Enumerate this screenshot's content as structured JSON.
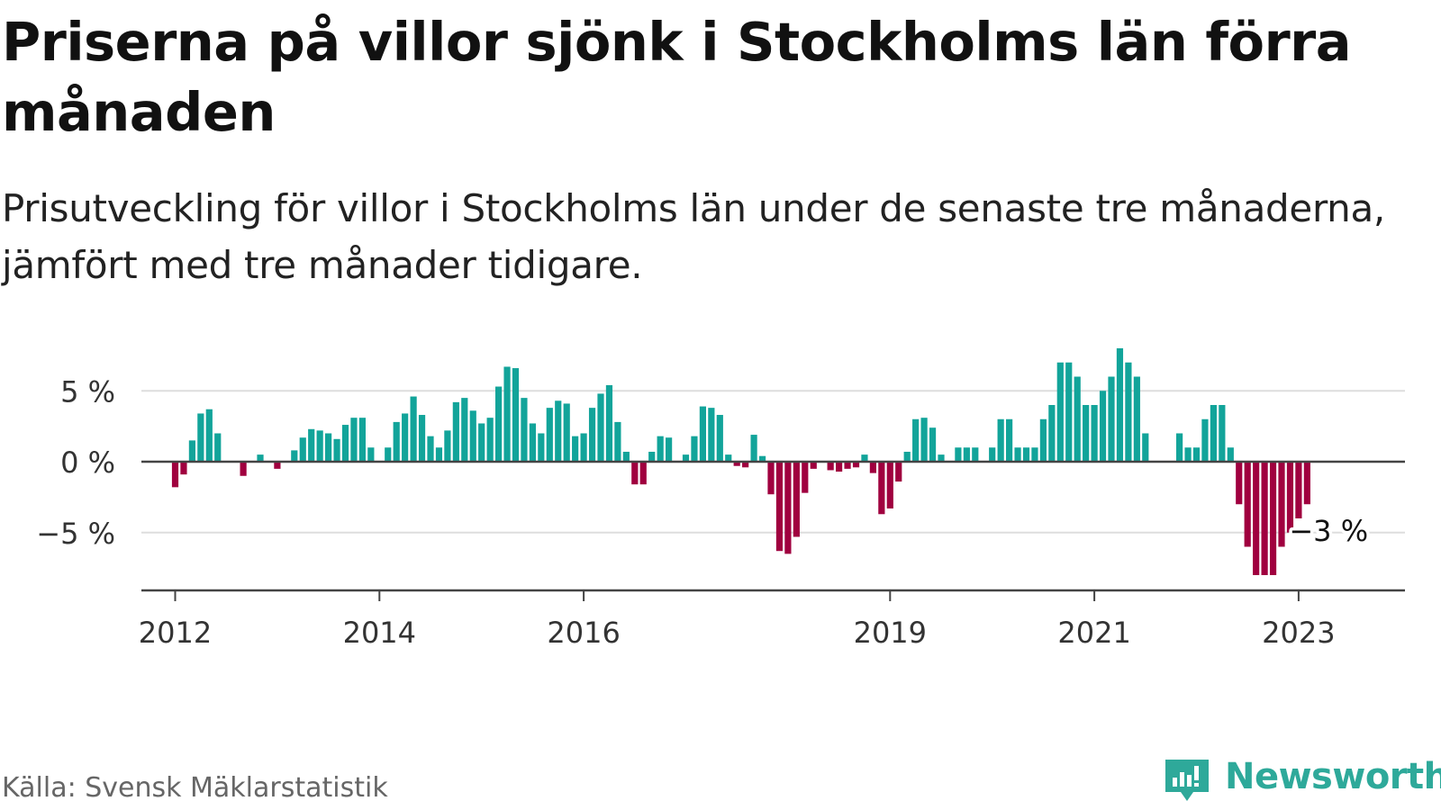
{
  "header": {
    "title": "Priserna på villor sjönk i Stockholms län förra månaden",
    "subtitle": "Prisutveckling för villor i Stockholms län under de senaste tre månaderna, jämfört med tre månader tidigare."
  },
  "footer": {
    "source": "Källa: Svensk Mäklarstatistik",
    "brand": "Newsworthy"
  },
  "colors": {
    "positive": "#12a49a",
    "negative": "#a0003f",
    "brand": "#2ea99a",
    "grid": "#dddddd",
    "zero_line": "#444444",
    "axis_text": "#333333"
  },
  "chart_data": {
    "type": "bar",
    "title": "",
    "xlabel": "",
    "ylabel": "",
    "ylim": [
      -9,
      9
    ],
    "yticks": [
      -5,
      0,
      5
    ],
    "ytick_labels": [
      "−5 %",
      "0 %",
      "5 %"
    ],
    "xticks": [
      {
        "label": "2012",
        "date": "2012-01"
      },
      {
        "label": "2014",
        "date": "2014-01"
      },
      {
        "label": "2016",
        "date": "2016-01"
      },
      {
        "label": "2019",
        "date": "2019-01"
      },
      {
        "label": "2021",
        "date": "2021-01"
      },
      {
        "label": "2023",
        "date": "2023-01"
      }
    ],
    "grid": true,
    "last_label": "−3 %",
    "series": [
      {
        "x": [
          "2011-07",
          "2011-08",
          "2011-09",
          "2011-10",
          "2011-11",
          "2011-12",
          "2012-01",
          "2012-02",
          "2012-03",
          "2012-04",
          "2012-05",
          "2012-06",
          "2012-07",
          "2012-08",
          "2012-09",
          "2012-10",
          "2012-11",
          "2012-12",
          "2013-01",
          "2013-02",
          "2013-03",
          "2013-04",
          "2013-05",
          "2013-06",
          "2013-07",
          "2013-08",
          "2013-09",
          "2013-10",
          "2013-11",
          "2013-12",
          "2014-01",
          "2014-02",
          "2014-03",
          "2014-04",
          "2014-05",
          "2014-06",
          "2014-07",
          "2014-08",
          "2014-09",
          "2014-10",
          "2014-11",
          "2014-12",
          "2015-01",
          "2015-02",
          "2015-03",
          "2015-04",
          "2015-05",
          "2015-06",
          "2015-07",
          "2015-08",
          "2015-09",
          "2015-10",
          "2015-11",
          "2015-12",
          "2016-01",
          "2016-02",
          "2016-03",
          "2016-04",
          "2016-05",
          "2016-06",
          "2016-07",
          "2016-08",
          "2016-09",
          "2016-10",
          "2016-11",
          "2016-12",
          "2017-01",
          "2017-02",
          "2017-03",
          "2017-04",
          "2017-05",
          "2017-06",
          "2017-07",
          "2017-08",
          "2017-09",
          "2017-10",
          "2017-11",
          "2017-12",
          "2018-01",
          "2018-02",
          "2018-03",
          "2018-04",
          "2018-05",
          "2018-06",
          "2018-07",
          "2018-08",
          "2018-09",
          "2018-10",
          "2018-11",
          "2018-12",
          "2019-01",
          "2019-02",
          "2019-03",
          "2019-04",
          "2019-05",
          "2019-06",
          "2019-07",
          "2019-08",
          "2019-09",
          "2019-10",
          "2019-11",
          "2019-12",
          "2020-01",
          "2020-02",
          "2020-03",
          "2020-04",
          "2020-05",
          "2020-06",
          "2020-07",
          "2020-08",
          "2020-09",
          "2020-10",
          "2020-11",
          "2020-12",
          "2021-01",
          "2021-02",
          "2021-03",
          "2021-04",
          "2021-05",
          "2021-06",
          "2021-07",
          "2021-08",
          "2021-09",
          "2021-10",
          "2021-11",
          "2021-12",
          "2022-01",
          "2022-02",
          "2022-03",
          "2022-04",
          "2022-05",
          "2022-06",
          "2022-07",
          "2022-08",
          "2022-09",
          "2022-10",
          "2022-11",
          "2022-12",
          "2023-01",
          "2023-02"
        ],
        "values": [
          null,
          null,
          null,
          null,
          null,
          null,
          -1.8,
          -0.9,
          1.5,
          3.4,
          3.7,
          2.0,
          null,
          null,
          -1.0,
          null,
          0.5,
          null,
          -0.5,
          null,
          0.8,
          1.7,
          2.3,
          2.2,
          2.0,
          1.6,
          2.6,
          3.1,
          3.1,
          1.0,
          null,
          1.0,
          2.8,
          3.4,
          4.6,
          3.3,
          1.8,
          1.0,
          2.2,
          4.2,
          4.5,
          3.6,
          2.7,
          3.1,
          5.3,
          6.7,
          6.6,
          4.5,
          2.7,
          2.0,
          3.8,
          4.3,
          4.1,
          1.8,
          2.0,
          3.8,
          4.8,
          5.4,
          2.8,
          0.7,
          -1.6,
          -1.6,
          0.7,
          1.8,
          1.7,
          null,
          0.5,
          1.8,
          3.9,
          3.8,
          3.3,
          0.5,
          -0.3,
          -0.4,
          1.9,
          0.4,
          -2.3,
          -6.3,
          -6.5,
          -5.3,
          -2.2,
          -0.5,
          null,
          -0.6,
          -0.7,
          -0.5,
          -0.4,
          0.5,
          -0.8,
          -3.7,
          -3.3,
          -1.4,
          0.7,
          3.0,
          3.1,
          2.4,
          0.5,
          null,
          1.0,
          1.0,
          1.0,
          null,
          1.0,
          3.0,
          3.0,
          1.0,
          1.0,
          1.0,
          3.0,
          4.0,
          7.0,
          7.0,
          6.0,
          4.0,
          4.0,
          5.0,
          6.0,
          8.0,
          7.0,
          6.0,
          2.0,
          null,
          null,
          null,
          2.0,
          1.0,
          1.0,
          3.0,
          4.0,
          4.0,
          1.0,
          -3.0,
          -6.0,
          -8.0,
          -8.0,
          -8.0,
          -6.0,
          -5.0,
          -4.0,
          -3.0
        ]
      }
    ]
  }
}
